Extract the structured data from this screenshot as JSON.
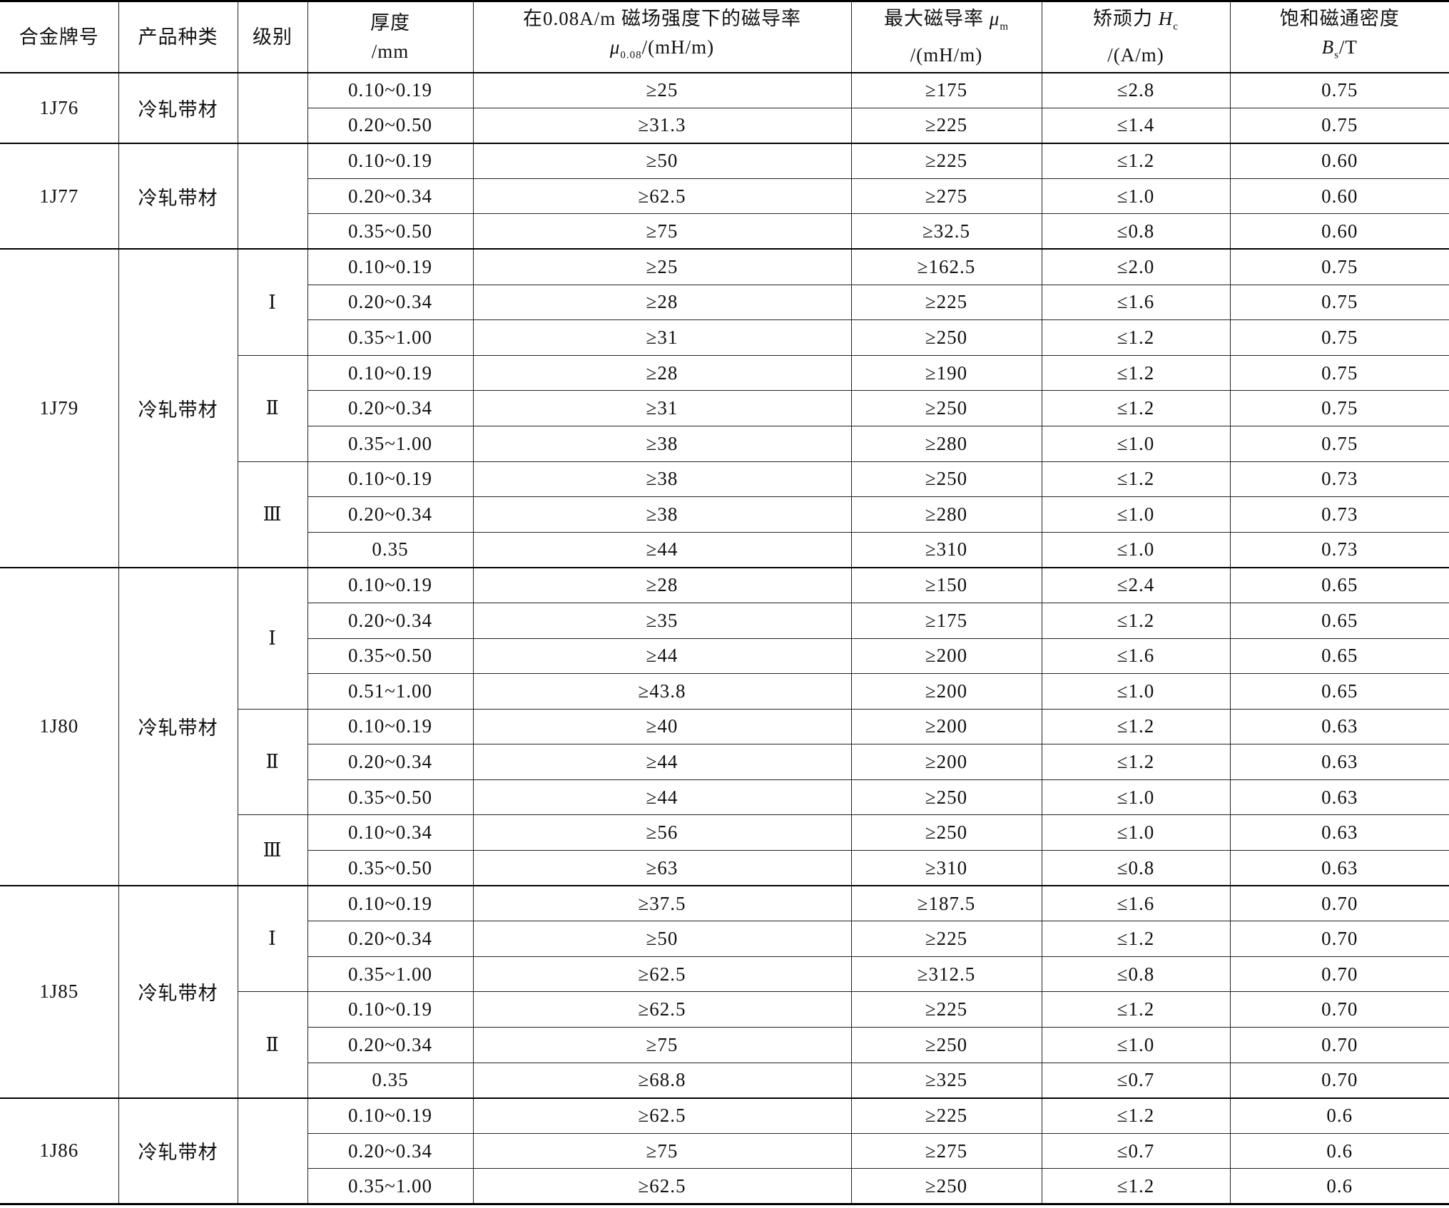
{
  "table": {
    "header": [
      {
        "lines": [
          [
            {
              "text": "合金牌号"
            }
          ]
        ]
      },
      {
        "lines": [
          [
            {
              "text": "产品种类"
            }
          ]
        ]
      },
      {
        "lines": [
          [
            {
              "text": "级别"
            }
          ]
        ]
      },
      {
        "lines": [
          [
            {
              "text": "厚度"
            }
          ],
          [
            {
              "text": "/mm"
            }
          ]
        ]
      },
      {
        "lines": [
          [
            {
              "text": "在0.08A/m 磁场强度下的磁导率"
            }
          ],
          [
            {
              "text": "μ",
              "italic": true
            },
            {
              "text": "0.08",
              "sub": true
            },
            {
              "text": "/(mH/m)"
            }
          ]
        ]
      },
      {
        "lines": [
          [
            {
              "text": "最大磁导率 "
            },
            {
              "text": "μ",
              "italic": true
            },
            {
              "text": "m",
              "sub": true
            }
          ],
          [
            {
              "text": "/(mH/m)"
            }
          ]
        ]
      },
      {
        "lines": [
          [
            {
              "text": "矫顽力 "
            },
            {
              "text": "H",
              "italic": true
            },
            {
              "text": "c",
              "sub": true
            }
          ],
          [
            {
              "text": "/(A/m)"
            }
          ]
        ]
      },
      {
        "lines": [
          [
            {
              "text": "饱和磁通密度"
            }
          ],
          [
            {
              "text": "B",
              "italic": true
            },
            {
              "text": "s",
              "sub": true
            },
            {
              "text": "/T"
            }
          ]
        ]
      }
    ],
    "groups": [
      {
        "alloy": "1J76",
        "product": "冷轧带材",
        "grades": [
          {
            "rows": [
              [
                "0.10~0.19",
                "≥25",
                "≥175",
                "≤2.8",
                "0.75"
              ],
              [
                "0.20~0.50",
                "≥31.3",
                "≥225",
                "≤1.4",
                "0.75"
              ]
            ]
          }
        ]
      },
      {
        "alloy": "1J77",
        "product": "冷轧带材",
        "grades": [
          {
            "rows": [
              [
                "0.10~0.19",
                "≥50",
                "≥225",
                "≤1.2",
                "0.60"
              ],
              [
                "0.20~0.34",
                "≥62.5",
                "≥275",
                "≤1.0",
                "0.60"
              ],
              [
                "0.35~0.50",
                "≥75",
                "≥32.5",
                "≤0.8",
                "0.60"
              ]
            ]
          }
        ]
      },
      {
        "alloy": "1J79",
        "product": "冷轧带材",
        "grades": [
          {
            "grade": "Ⅰ",
            "rows": [
              [
                "0.10~0.19",
                "≥25",
                "≥162.5",
                "≤2.0",
                "0.75"
              ],
              [
                "0.20~0.34",
                "≥28",
                "≥225",
                "≤1.6",
                "0.75"
              ],
              [
                "0.35~1.00",
                "≥31",
                "≥250",
                "≤1.2",
                "0.75"
              ]
            ]
          },
          {
            "grade": "Ⅱ",
            "rows": [
              [
                "0.10~0.19",
                "≥28",
                "≥190",
                "≤1.2",
                "0.75"
              ],
              [
                "0.20~0.34",
                "≥31",
                "≥250",
                "≤1.2",
                "0.75"
              ],
              [
                "0.35~1.00",
                "≥38",
                "≥280",
                "≤1.0",
                "0.75"
              ]
            ]
          },
          {
            "grade": "Ⅲ",
            "rows": [
              [
                "0.10~0.19",
                "≥38",
                "≥250",
                "≤1.2",
                "0.73"
              ],
              [
                "0.20~0.34",
                "≥38",
                "≥280",
                "≤1.0",
                "0.73"
              ],
              [
                "0.35",
                "≥44",
                "≥310",
                "≤1.0",
                "0.73"
              ]
            ]
          }
        ]
      },
      {
        "alloy": "1J80",
        "product": "冷轧带材",
        "grades": [
          {
            "grade": "Ⅰ",
            "rows": [
              [
                "0.10~0.19",
                "≥28",
                "≥150",
                "≤2.4",
                "0.65"
              ],
              [
                "0.20~0.34",
                "≥35",
                "≥175",
                "≤1.2",
                "0.65"
              ],
              [
                "0.35~0.50",
                "≥44",
                "≥200",
                "≤1.6",
                "0.65"
              ],
              [
                "0.51~1.00",
                "≥43.8",
                "≥200",
                "≤1.0",
                "0.65"
              ]
            ]
          },
          {
            "grade": "Ⅱ",
            "rows": [
              [
                "0.10~0.19",
                "≥40",
                "≥200",
                "≤1.2",
                "0.63"
              ],
              [
                "0.20~0.34",
                "≥44",
                "≥200",
                "≤1.2",
                "0.63"
              ],
              [
                "0.35~0.50",
                "≥44",
                "≥250",
                "≤1.0",
                "0.63"
              ]
            ]
          },
          {
            "grade": "Ⅲ",
            "rows": [
              [
                "0.10~0.34",
                "≥56",
                "≥250",
                "≤1.0",
                "0.63"
              ],
              [
                "0.35~0.50",
                "≥63",
                "≥310",
                "≤0.8",
                "0.63"
              ]
            ]
          }
        ]
      },
      {
        "alloy": "1J85",
        "product": "冷轧带材",
        "grades": [
          {
            "grade": "Ⅰ",
            "rows": [
              [
                "0.10~0.19",
                "≥37.5",
                "≥187.5",
                "≤1.6",
                "0.70"
              ],
              [
                "0.20~0.34",
                "≥50",
                "≥225",
                "≤1.2",
                "0.70"
              ],
              [
                "0.35~1.00",
                "≥62.5",
                "≥312.5",
                "≤0.8",
                "0.70"
              ]
            ]
          },
          {
            "grade": "Ⅱ",
            "rows": [
              [
                "0.10~0.19",
                "≥62.5",
                "≥225",
                "≤1.2",
                "0.70"
              ],
              [
                "0.20~0.34",
                "≥75",
                "≥250",
                "≤1.0",
                "0.70"
              ],
              [
                "0.35",
                "≥68.8",
                "≥325",
                "≤0.7",
                "0.70"
              ]
            ]
          }
        ]
      },
      {
        "alloy": "1J86",
        "product": "冷轧带材",
        "grades": [
          {
            "rows": [
              [
                "0.10~0.19",
                "≥62.5",
                "≥225",
                "≤1.2",
                "0.6"
              ],
              [
                "0.20~0.34",
                "≥75",
                "≥275",
                "≤0.7",
                "0.6"
              ],
              [
                "0.35~1.00",
                "≥62.5",
                "≥250",
                "≤1.2",
                "0.6"
              ]
            ]
          }
        ]
      }
    ]
  }
}
